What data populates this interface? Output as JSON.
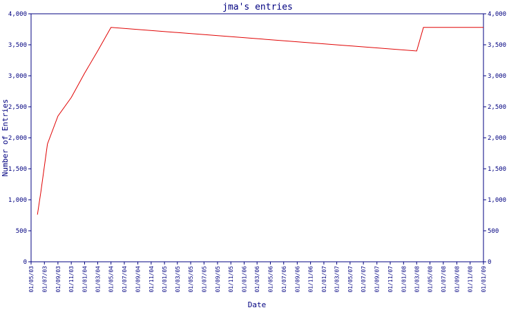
{
  "chart_data": {
    "type": "line",
    "title": "jma's entries",
    "xlabel": "Date",
    "ylabel": "Number of Entries",
    "ylim": [
      0,
      4000
    ],
    "y_ticks": [
      0,
      500,
      1000,
      1500,
      2000,
      2500,
      3000,
      3500,
      4000
    ],
    "y_tick_labels": [
      "0",
      "500",
      "1,000",
      "1,500",
      "2,000",
      "2,500",
      "3,000",
      "3,500",
      "4,000"
    ],
    "x_tick_labels": [
      "01/05/03",
      "01/07/03",
      "01/09/03",
      "01/11/03",
      "01/01/04",
      "01/03/04",
      "01/05/04",
      "01/07/04",
      "01/09/04",
      "01/11/04",
      "01/01/05",
      "01/03/05",
      "01/05/05",
      "01/07/05",
      "01/09/05",
      "01/11/05",
      "01/01/06",
      "01/03/06",
      "01/05/06",
      "01/07/06",
      "01/09/06",
      "01/11/06",
      "01/01/07",
      "01/03/07",
      "01/05/07",
      "01/07/07",
      "01/09/07",
      "01/11/07",
      "01/01/08",
      "01/03/08",
      "01/05/08",
      "01/07/08",
      "01/09/08",
      "01/11/08",
      "01/01/09"
    ],
    "grid": false,
    "colors": {
      "line": "#e00000",
      "axis": "#000080",
      "text": "#000080"
    },
    "series": [
      {
        "x": [
          "2003-05-30",
          "2003-06-15",
          "2003-07-15",
          "2003-09-01",
          "2003-11-01",
          "2004-01-01",
          "2004-03-01",
          "2004-05-01",
          "2008-03-01",
          "2008-04-01",
          "2009-01-01"
        ],
        "values": [
          760,
          1130,
          1900,
          2350,
          2650,
          3040,
          3400,
          3780,
          3400,
          3780,
          3780
        ]
      }
    ]
  }
}
